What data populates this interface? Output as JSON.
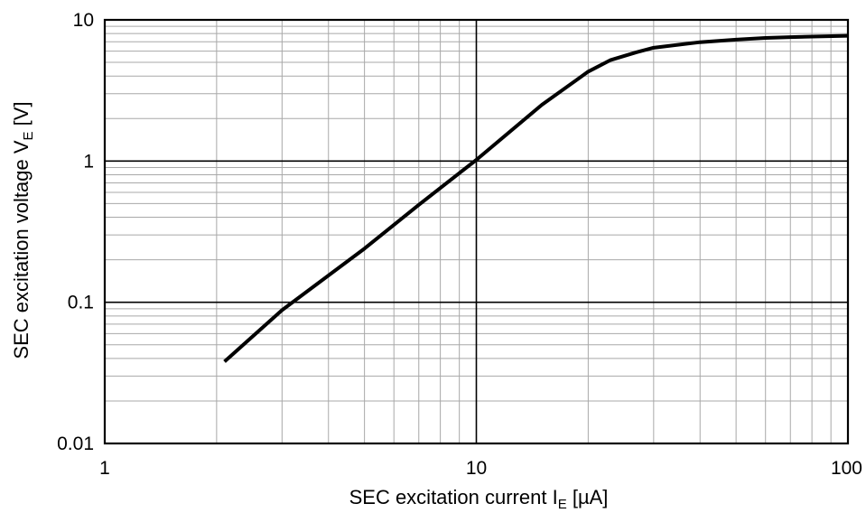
{
  "chart_data": {
    "type": "line",
    "x_scale": "log",
    "y_scale": "log",
    "xlim": [
      1,
      100
    ],
    "ylim": [
      0.01,
      10
    ],
    "x_ticks": [
      1,
      10,
      100
    ],
    "y_ticks": [
      0.01,
      0.1,
      1,
      10
    ],
    "x_tick_labels": [
      "1",
      "10",
      "100"
    ],
    "y_tick_labels": [
      "0.01",
      "0.1",
      "1",
      "10"
    ],
    "xlabel": {
      "main": "SEC excitation current I",
      "sub": "E",
      "unit": " [µA]"
    },
    "ylabel": {
      "main": "SEC excitation voltage V",
      "sub": "E",
      "unit": " [V]"
    },
    "grid": "major and minor (log decades)",
    "series": [
      {
        "color": "#000000",
        "x": [
          2.1,
          3,
          5,
          7,
          10,
          15,
          20,
          23,
          27,
          30,
          40,
          50,
          60,
          70,
          80,
          100
        ],
        "y": [
          0.038,
          0.088,
          0.24,
          0.49,
          1.02,
          2.5,
          4.3,
          5.2,
          5.9,
          6.35,
          6.95,
          7.25,
          7.45,
          7.55,
          7.62,
          7.72
        ]
      }
    ]
  }
}
